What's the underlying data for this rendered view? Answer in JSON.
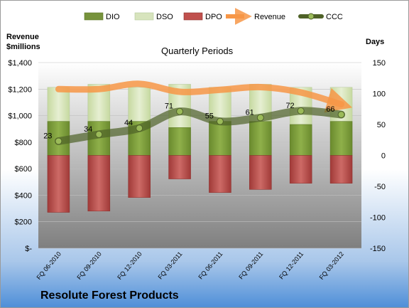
{
  "chart_data": {
    "type": "bar",
    "title": "Quarterly Periods",
    "company": "Resolute Forest Products",
    "left_axis_title": "Revenue\n$millions",
    "right_axis_title": "Days",
    "categories": [
      "FQ 06-2010",
      "FQ 09-2010",
      "FQ 12-2010",
      "FQ 03-2011",
      "FQ 06-2011",
      "FQ 09-2011",
      "FQ 12-2011",
      "FQ 03-2012"
    ],
    "left_ticks": [
      "$1,400",
      "$1,200",
      "$1,000",
      "$800",
      "$600",
      "$400",
      "$200",
      "$-"
    ],
    "right_ticks": [
      "150",
      "100",
      "50",
      "0",
      "-50",
      "-100",
      "-150"
    ],
    "ylim_left": [
      0,
      1400
    ],
    "ylim_right": [
      -150,
      150
    ],
    "legend_position": "top",
    "series": [
      {
        "name": "DIO",
        "color": "#77933c",
        "type": "bar",
        "values": [
          55,
          55,
          55,
          45,
          55,
          55,
          50,
          55
        ]
      },
      {
        "name": "DSO",
        "color": "#d7e4bd",
        "type": "bar",
        "values": [
          55,
          60,
          55,
          70,
          55,
          60,
          60,
          55
        ]
      },
      {
        "name": "DPO",
        "color": "#c0504d",
        "type": "bar",
        "values": [
          92,
          90,
          68,
          38,
          60,
          55,
          45,
          45
        ]
      },
      {
        "name": "Revenue",
        "color": "#f79646",
        "type": "line",
        "axis": "left",
        "values": [
          1200,
          1200,
          1240,
          1180,
          1195,
          1215,
          1175,
          1085
        ]
      },
      {
        "name": "CCC",
        "color": "#4f6228",
        "type": "line",
        "axis": "right",
        "values": [
          23,
          34,
          44,
          71,
          55,
          61,
          72,
          66
        ],
        "labels": [
          "23",
          "34",
          "44",
          "71",
          "55",
          "61",
          "72",
          "66"
        ]
      }
    ]
  }
}
